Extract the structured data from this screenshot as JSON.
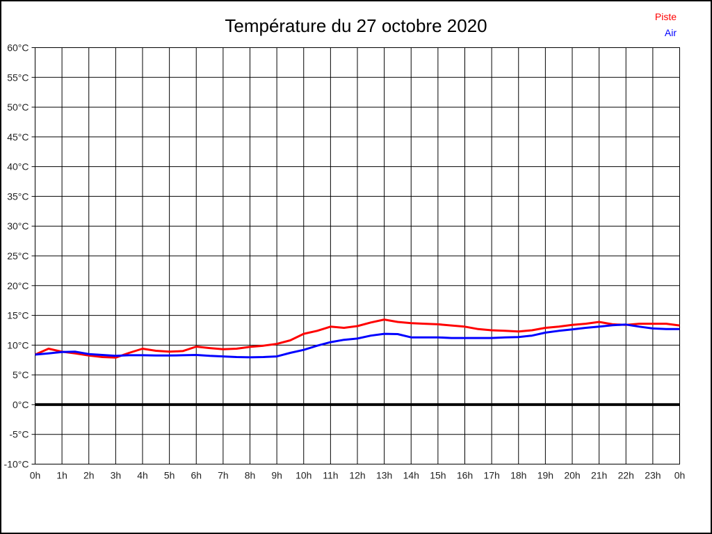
{
  "page": {
    "background": "#ffffff",
    "border_color": "#000000"
  },
  "header": {
    "title": "Température du 27 octobre 2020"
  },
  "legend": {
    "items": [
      {
        "label": "Piste",
        "color": "#ff0000"
      },
      {
        "label": "Air",
        "color": "#0000ff"
      }
    ]
  },
  "chart_data": {
    "type": "line",
    "title": "Température du 27 octobre 2020",
    "xlabel": "",
    "ylabel": "",
    "x_unit": "hours",
    "xlim": [
      0,
      24
    ],
    "ylim": [
      -10,
      60
    ],
    "y_tick_step": 5,
    "grid": true,
    "legend_position": "top-right",
    "x_tick_labels": [
      "0h",
      "1h",
      "2h",
      "3h",
      "4h",
      "5h",
      "6h",
      "7h",
      "8h",
      "9h",
      "10h",
      "11h",
      "12h",
      "13h",
      "14h",
      "15h",
      "16h",
      "17h",
      "18h",
      "19h",
      "20h",
      "21h",
      "22h",
      "23h",
      "0h"
    ],
    "y_tick_labels": [
      "60°C",
      "55°C",
      "50°C",
      "45°C",
      "40°C",
      "35°C",
      "30°C",
      "25°C",
      "20°C",
      "15°C",
      "10°C",
      "5°C",
      "0°C",
      "-5°C",
      "-10°C"
    ],
    "zero_line": {
      "value": 0,
      "color": "#000000",
      "width": 4
    },
    "x_start": 0,
    "x_step": 0.5,
    "series": [
      {
        "name": "Piste",
        "color": "#ff0000",
        "values": [
          8.4,
          9.4,
          8.9,
          8.6,
          8.25,
          8.0,
          7.9,
          8.7,
          9.4,
          9.05,
          8.9,
          9.0,
          9.75,
          9.5,
          9.3,
          9.4,
          9.7,
          9.9,
          10.2,
          10.8,
          11.9,
          12.4,
          13.1,
          12.9,
          13.2,
          13.8,
          14.3,
          13.9,
          13.7,
          13.6,
          13.5,
          13.3,
          13.1,
          12.7,
          12.5,
          12.4,
          12.3,
          12.5,
          12.9,
          13.1,
          13.4,
          13.6,
          13.9,
          13.5,
          13.4,
          13.6,
          13.6,
          13.6,
          13.3
        ]
      },
      {
        "name": "Air",
        "color": "#0000ff",
        "values": [
          8.4,
          8.6,
          8.85,
          8.9,
          8.5,
          8.35,
          8.2,
          8.3,
          8.3,
          8.25,
          8.25,
          8.3,
          8.35,
          8.2,
          8.1,
          8.0,
          7.95,
          8.0,
          8.1,
          8.7,
          9.2,
          9.9,
          10.5,
          10.9,
          11.1,
          11.6,
          11.9,
          11.85,
          11.3,
          11.3,
          11.3,
          11.2,
          11.2,
          11.2,
          11.2,
          11.3,
          11.35,
          11.6,
          12.1,
          12.4,
          12.65,
          12.9,
          13.1,
          13.35,
          13.45,
          13.1,
          12.8,
          12.7,
          12.7
        ]
      }
    ]
  }
}
